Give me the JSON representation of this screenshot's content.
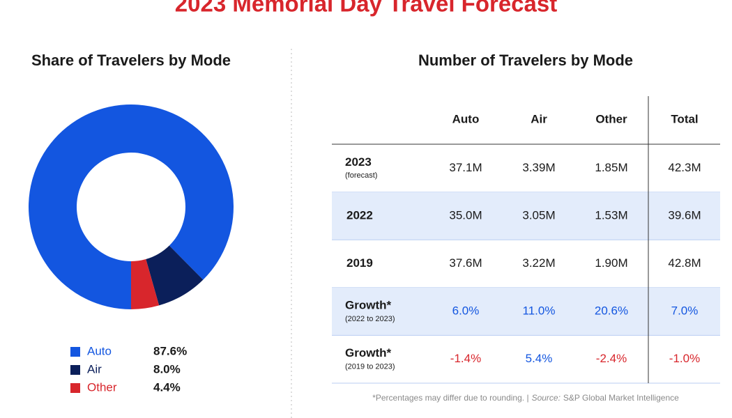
{
  "title": "2023 Memorial Day Travel Forecast",
  "chart_data": {
    "type": "pie",
    "title": "Share of Travelers by Mode",
    "donut": true,
    "categories": [
      "Auto",
      "Air",
      "Other"
    ],
    "values": [
      87.6,
      8.0,
      4.4
    ],
    "value_labels": [
      "87.6%",
      "8.0%",
      "4.4%"
    ],
    "colors": [
      "#1356e0",
      "#0b1f5a",
      "#d8262c"
    ]
  },
  "table": {
    "title": "Number of Travelers by Mode",
    "columns": [
      "Auto",
      "Air",
      "Other",
      "Total"
    ],
    "rows": [
      {
        "label": "2023",
        "sublabel": "(forecast)",
        "cells": [
          "37.1M",
          "3.39M",
          "1.85M",
          "42.3M"
        ]
      },
      {
        "label": "2022",
        "cells": [
          "35.0M",
          "3.05M",
          "1.53M",
          "39.6M"
        ]
      },
      {
        "label": "2019",
        "cells": [
          "37.6M",
          "3.22M",
          "1.90M",
          "42.8M"
        ]
      },
      {
        "label": "Growth*",
        "sublabel": "(2022 to 2023)",
        "cells": [
          "6.0%",
          "11.0%",
          "20.6%",
          "7.0%"
        ]
      },
      {
        "label": "Growth*",
        "sublabel": "(2019 to 2023)",
        "cells": [
          "-1.4%",
          "5.4%",
          "-2.4%",
          "-1.0%"
        ]
      }
    ]
  },
  "footnote": {
    "note": "*Percentages may differ due to rounding. |",
    "source_label": "Source:",
    "source": "S&P Global Market Intelligence"
  }
}
